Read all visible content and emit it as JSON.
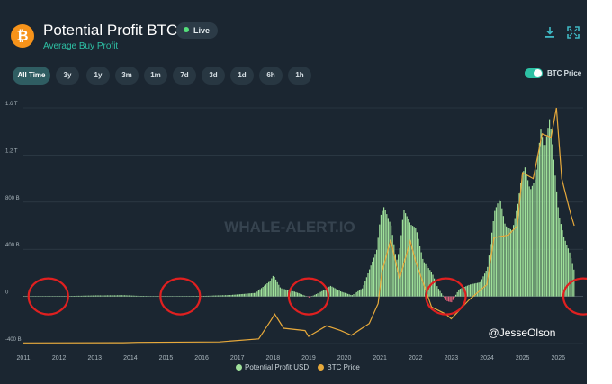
{
  "header": {
    "logo_glyph": "₿",
    "title": "Potential Profit BTC",
    "subtitle": "Average Buy Profit",
    "live_label": "Live"
  },
  "tabs": [
    {
      "label": "All Time",
      "active": true
    },
    {
      "label": "3y",
      "active": false
    },
    {
      "label": "1y",
      "active": false
    },
    {
      "label": "3m",
      "active": false
    },
    {
      "label": "1m",
      "active": false
    },
    {
      "label": "7d",
      "active": false
    },
    {
      "label": "3d",
      "active": false
    },
    {
      "label": "1d",
      "active": false
    },
    {
      "label": "6h",
      "active": false
    },
    {
      "label": "1h",
      "active": false
    }
  ],
  "toggle": {
    "label": "BTC Price",
    "on": true
  },
  "icons": {
    "download": "download-icon",
    "fullscreen": "fullscreen-icon"
  },
  "watermark": "WHALE-ALERT.IO",
  "credit": "@JesseOlson",
  "legend": [
    {
      "label": "Potential Profit USD",
      "color": "#9fe09a"
    },
    {
      "label": "BTC Price",
      "color": "#e7a93b"
    }
  ],
  "colors": {
    "accent": "#2dc0a4",
    "profit": "#9fe09a",
    "loss": "#e0607a",
    "price": "#e7a93b",
    "highlight": "#e02020"
  },
  "chart_data": {
    "type": "area",
    "y_ticks": [
      "1.6 T",
      "1.2 T",
      "800 B",
      "400 B",
      "0",
      "-400 B"
    ],
    "y_tick_values": [
      1600,
      1200,
      800,
      400,
      0,
      -400
    ],
    "ylim": [
      -400,
      1600
    ],
    "x_ticks": [
      "2011",
      "2012",
      "2013",
      "2014",
      "2015",
      "2016",
      "2017",
      "2018",
      "2019",
      "2020",
      "2021",
      "2022",
      "2023",
      "2024",
      "2025",
      "2026"
    ],
    "xlim": [
      2011,
      2026.7
    ],
    "series": [
      {
        "name": "Potential Profit USD",
        "x": [
          2011,
          2012,
          2013,
          2013.8,
          2014.2,
          2015,
          2016,
          2016.8,
          2017.5,
          2017.9,
          2018.0,
          2018.2,
          2018.6,
          2018.9,
          2019.0,
          2019.4,
          2019.6,
          2019.9,
          2020.2,
          2020.5,
          2020.9,
          2021.0,
          2021.1,
          2021.3,
          2021.45,
          2021.55,
          2021.65,
          2021.85,
          2022.0,
          2022.2,
          2022.45,
          2022.6,
          2022.85,
          2023.0,
          2023.2,
          2023.5,
          2023.8,
          2024.0,
          2024.2,
          2024.35,
          2024.5,
          2024.7,
          2024.85,
          2024.95,
          2025.05,
          2025.2,
          2025.35,
          2025.5,
          2025.6,
          2025.75,
          2025.85,
          2026.0,
          2026.15,
          2026.3,
          2026.45
        ],
        "values": [
          0,
          2,
          8,
          10,
          5,
          1,
          4,
          12,
          30,
          130,
          180,
          70,
          40,
          5,
          -10,
          50,
          90,
          40,
          10,
          70,
          400,
          680,
          760,
          600,
          300,
          420,
          740,
          610,
          580,
          300,
          200,
          80,
          -40,
          -50,
          60,
          100,
          120,
          240,
          720,
          840,
          600,
          560,
          780,
          1000,
          1100,
          900,
          1000,
          1420,
          1250,
          1520,
          1200,
          700,
          500,
          380,
          200
        ]
      },
      {
        "name": "BTC Price",
        "x": [
          2011,
          2013.8,
          2014.2,
          2016.5,
          2017.6,
          2017.95,
          2018.05,
          2018.3,
          2018.9,
          2019.0,
          2019.5,
          2019.9,
          2020.2,
          2020.7,
          2020.95,
          2021.05,
          2021.3,
          2021.55,
          2021.85,
          2022.0,
          2022.45,
          2022.85,
          2023.0,
          2023.5,
          2024.0,
          2024.2,
          2024.6,
          2024.85,
          2025.0,
          2025.3,
          2025.55,
          2025.8,
          2025.95,
          2026.1,
          2026.35,
          2026.45
        ],
        "values": [
          -395,
          -393,
          -390,
          -386,
          -360,
          -200,
          -150,
          -270,
          -290,
          -340,
          -250,
          -290,
          -330,
          -230,
          -60,
          200,
          480,
          150,
          470,
          300,
          -90,
          -150,
          -190,
          -30,
          100,
          500,
          520,
          600,
          1050,
          1000,
          1380,
          1350,
          1600,
          1000,
          700,
          600
        ]
      }
    ],
    "highlight_circles_x": [
      2011.7,
      2015.4,
      2019.0,
      2022.85,
      2026.7
    ]
  }
}
